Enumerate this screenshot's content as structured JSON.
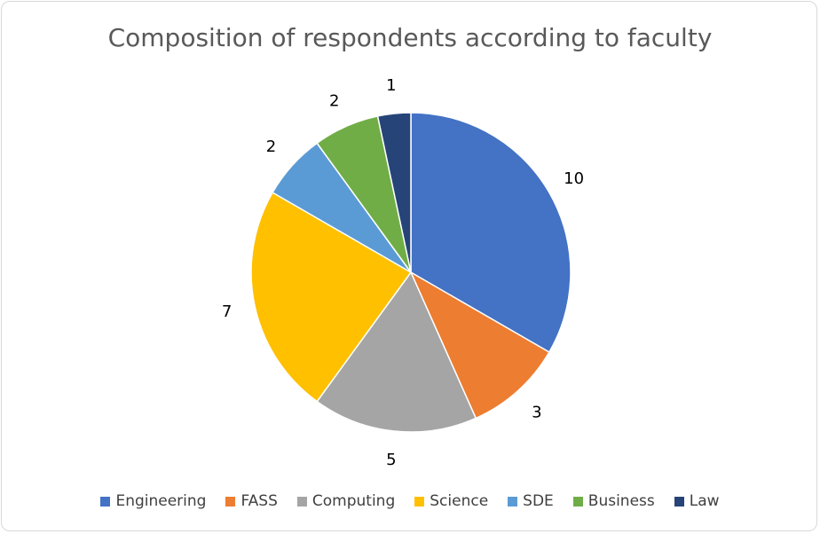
{
  "chart_data": {
    "type": "pie",
    "title": "Composition of respondents according to faculty",
    "categories": [
      "Engineering",
      "FASS",
      "Computing",
      "Science",
      "SDE",
      "Business",
      "Law"
    ],
    "values": [
      10,
      3,
      5,
      7,
      2,
      2,
      1
    ],
    "colors": [
      "#4472c4",
      "#ed7d31",
      "#a5a5a5",
      "#ffc000",
      "#5b9bd5",
      "#70ad47",
      "#264478"
    ],
    "start_angle": "12 o'clock",
    "direction": "clockwise",
    "legend_position": "bottom",
    "data_labels": "values"
  }
}
